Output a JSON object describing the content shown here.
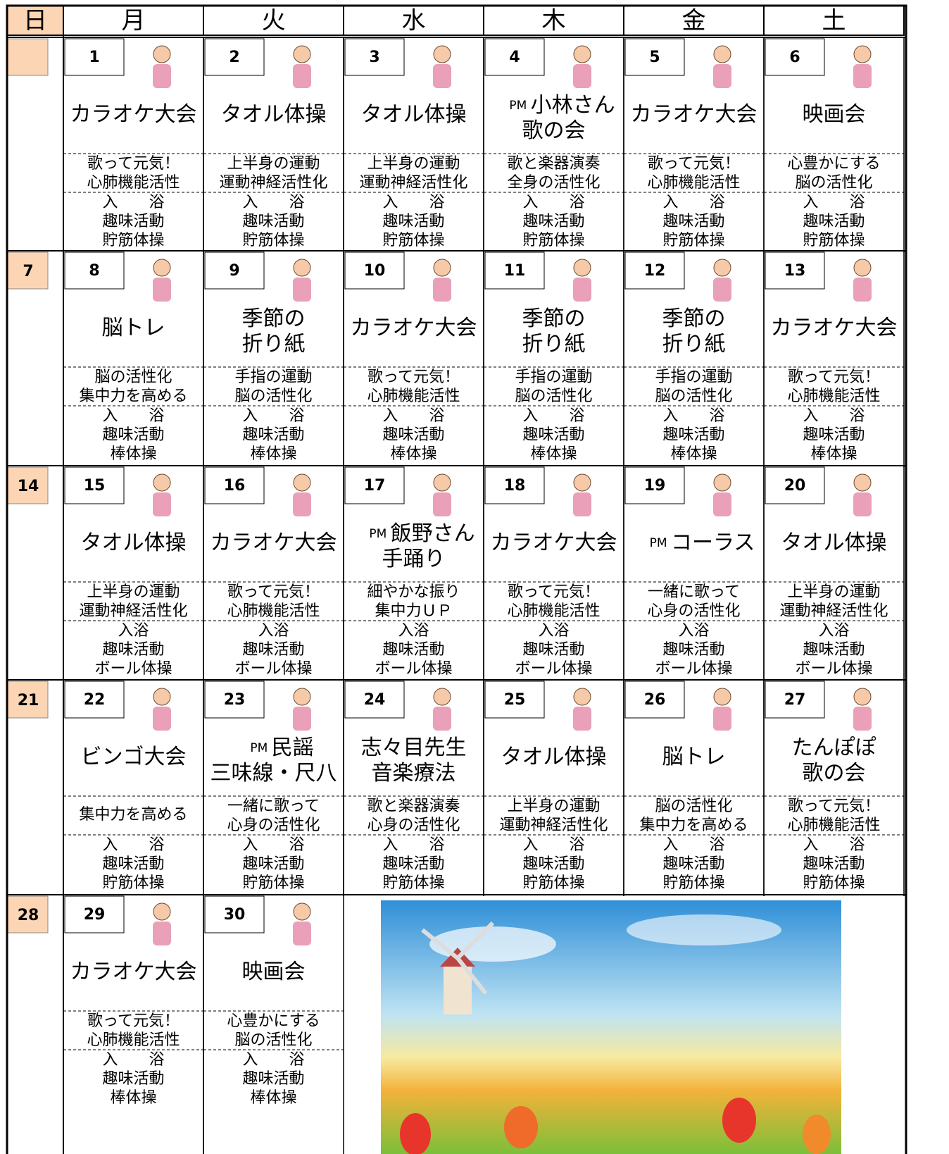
{
  "header": {
    "days": [
      "日",
      "月",
      "火",
      "水",
      "木",
      "金",
      "土"
    ]
  },
  "weeks": [
    {
      "days": [
        {
          "date": "1",
          "event": [
            "カラオケ大会"
          ],
          "purpose": [
            "歌って元気！",
            "心肺機能活性"
          ],
          "activities": [
            "入　　浴",
            "趣味活動",
            "貯筋体操"
          ]
        },
        {
          "date": "2",
          "event": [
            "タオル体操"
          ],
          "purpose": [
            "上半身の運動",
            "運動神経活性化"
          ],
          "activities": [
            "入　　浴",
            "趣味活動",
            "貯筋体操"
          ]
        },
        {
          "date": "3",
          "event": [
            "タオル体操"
          ],
          "purpose": [
            "上半身の運動",
            "運動神経活性化"
          ],
          "activities": [
            "入　　浴",
            "趣味活動",
            "貯筋体操"
          ]
        },
        {
          "date": "4",
          "pm": "PM",
          "event": [
            "小林さん",
            "歌の会"
          ],
          "purpose": [
            "歌と楽器演奏",
            "全身の活性化"
          ],
          "activities": [
            "入　　浴",
            "趣味活動",
            "貯筋体操"
          ]
        },
        {
          "date": "5",
          "event": [
            "カラオケ大会"
          ],
          "purpose": [
            "歌って元気！",
            "心肺機能活性"
          ],
          "activities": [
            "入　　浴",
            "趣味活動",
            "貯筋体操"
          ]
        },
        {
          "date": "6",
          "event": [
            "映画会"
          ],
          "purpose": [
            "心豊かにする",
            "脳の活性化"
          ],
          "activities": [
            "入　　浴",
            "趣味活動",
            "貯筋体操"
          ]
        }
      ]
    },
    {
      "sunday": "7",
      "days": [
        {
          "date": "8",
          "event": [
            "脳トレ"
          ],
          "purpose": [
            "脳の活性化",
            "集中力を高める"
          ],
          "activities": [
            "入　　浴",
            "趣味活動",
            "棒体操"
          ]
        },
        {
          "date": "9",
          "event": [
            "季節の",
            "折り紙"
          ],
          "purpose": [
            "手指の運動",
            "脳の活性化"
          ],
          "activities": [
            "入　　浴",
            "趣味活動",
            "棒体操"
          ]
        },
        {
          "date": "10",
          "event": [
            "カラオケ大会"
          ],
          "purpose": [
            "歌って元気！",
            "心肺機能活性"
          ],
          "activities": [
            "入　　浴",
            "趣味活動",
            "棒体操"
          ]
        },
        {
          "date": "11",
          "event": [
            "季節の",
            "折り紙"
          ],
          "purpose": [
            "手指の運動",
            "脳の活性化"
          ],
          "activities": [
            "入　　浴",
            "趣味活動",
            "棒体操"
          ]
        },
        {
          "date": "12",
          "event": [
            "季節の",
            "折り紙"
          ],
          "purpose": [
            "手指の運動",
            "脳の活性化"
          ],
          "activities": [
            "入　　浴",
            "趣味活動",
            "棒体操"
          ]
        },
        {
          "date": "13",
          "event": [
            "カラオケ大会"
          ],
          "purpose": [
            "歌って元気！",
            "心肺機能活性"
          ],
          "activities": [
            "入　　浴",
            "趣味活動",
            "棒体操"
          ]
        }
      ]
    },
    {
      "sunday": "14",
      "days": [
        {
          "date": "15",
          "event": [
            "タオル体操"
          ],
          "purpose": [
            "上半身の運動",
            "運動神経活性化"
          ],
          "activities": [
            "入浴",
            "趣味活動",
            "ボール体操"
          ]
        },
        {
          "date": "16",
          "event": [
            "カラオケ大会"
          ],
          "purpose": [
            "歌って元気！",
            "心肺機能活性"
          ],
          "activities": [
            "入浴",
            "趣味活動",
            "ボール体操"
          ]
        },
        {
          "date": "17",
          "pm": "PM",
          "event": [
            "飯野さん",
            "手踊り"
          ],
          "purpose": [
            "細やかな振り",
            "集中力ＵＰ"
          ],
          "activities": [
            "入浴",
            "趣味活動",
            "ボール体操"
          ]
        },
        {
          "date": "18",
          "event": [
            "カラオケ大会"
          ],
          "purpose": [
            "歌って元気！",
            "心肺機能活性"
          ],
          "activities": [
            "入浴",
            "趣味活動",
            "ボール体操"
          ]
        },
        {
          "date": "19",
          "pm": "PM",
          "event": [
            "コーラス"
          ],
          "purpose": [
            "一緒に歌って",
            "心身の活性化"
          ],
          "activities": [
            "入浴",
            "趣味活動",
            "ボール体操"
          ]
        },
        {
          "date": "20",
          "event": [
            "タオル体操"
          ],
          "purpose": [
            "上半身の運動",
            "運動神経活性化"
          ],
          "activities": [
            "入浴",
            "趣味活動",
            "ボール体操"
          ]
        }
      ]
    },
    {
      "sunday": "21",
      "days": [
        {
          "date": "22",
          "event": [
            "ビンゴ大会"
          ],
          "purpose": [
            "集中力を高める"
          ],
          "activities": [
            "入　　浴",
            "趣味活動",
            "貯筋体操"
          ]
        },
        {
          "date": "23",
          "pm": "PM",
          "event": [
            "民謡",
            "三味線・尺八"
          ],
          "purpose": [
            "一緒に歌って",
            "心身の活性化"
          ],
          "activities": [
            "入　　浴",
            "趣味活動",
            "貯筋体操"
          ]
        },
        {
          "date": "24",
          "event": [
            "志々目先生",
            "音楽療法"
          ],
          "purpose": [
            "歌と楽器演奏",
            "心身の活性化"
          ],
          "activities": [
            "入　　浴",
            "趣味活動",
            "貯筋体操"
          ]
        },
        {
          "date": "25",
          "event": [
            "タオル体操"
          ],
          "purpose": [
            "上半身の運動",
            "運動神経活性化"
          ],
          "activities": [
            "入　　浴",
            "趣味活動",
            "貯筋体操"
          ]
        },
        {
          "date": "26",
          "event": [
            "脳トレ"
          ],
          "purpose": [
            "脳の活性化",
            "集中力を高める"
          ],
          "activities": [
            "入　　浴",
            "趣味活動",
            "貯筋体操"
          ]
        },
        {
          "date": "27",
          "event": [
            "たんぽぽ",
            "歌の会"
          ],
          "purpose": [
            "歌って元気！",
            "心肺機能活性"
          ],
          "activities": [
            "入　　浴",
            "趣味活動",
            "貯筋体操"
          ]
        }
      ]
    },
    {
      "sunday": "28",
      "days": [
        {
          "date": "29",
          "event": [
            "カラオケ大会"
          ],
          "purpose": [
            "歌って元気！",
            "心肺機能活性"
          ],
          "activities": [
            "入　　浴",
            "趣味活動",
            "棒体操"
          ]
        },
        {
          "date": "30",
          "event": [
            "映画会"
          ],
          "purpose": [
            "心豊かにする",
            "脳の活性化"
          ],
          "activities": [
            "入　　浴",
            "趣味活動",
            "棒体操"
          ]
        }
      ]
    }
  ]
}
